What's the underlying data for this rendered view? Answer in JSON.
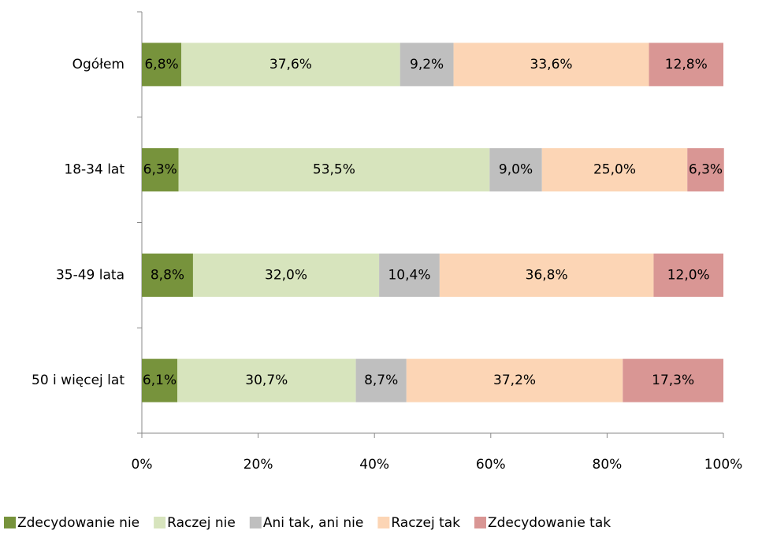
{
  "chart_data": {
    "type": "bar",
    "orientation": "horizontal",
    "stacked": true,
    "categories": [
      "Ogółem",
      "18-34 lat",
      "35-49 lata",
      "50 i więcej lat"
    ],
    "series": [
      {
        "name": "Zdecydowanie nie",
        "color": "#77933c",
        "values": [
          6.8,
          6.3,
          8.8,
          6.1
        ],
        "value_labels": [
          "6,8%",
          "6,3%",
          "8,8%",
          "6,1%"
        ]
      },
      {
        "name": "Raczej nie",
        "color": "#d7e4bd",
        "values": [
          37.6,
          53.5,
          32.0,
          30.7
        ],
        "value_labels": [
          "37,6%",
          "53,5%",
          "32,0%",
          "30,7%"
        ]
      },
      {
        "name": "Ani tak, ani nie",
        "color": "#bfbfbf",
        "values": [
          9.2,
          9.0,
          10.4,
          8.7
        ],
        "value_labels": [
          "9,2%",
          "9,0%",
          "10,4%",
          "8,7%"
        ]
      },
      {
        "name": "Raczej tak",
        "color": "#fcd5b5",
        "values": [
          33.6,
          25.0,
          36.8,
          37.2
        ],
        "value_labels": [
          "33,6%",
          "25,0%",
          "36,8%",
          "37,2%"
        ]
      },
      {
        "name": "Zdecydowanie tak",
        "color": "#d99694",
        "values": [
          12.8,
          6.3,
          12.0,
          17.3
        ],
        "value_labels": [
          "12,8%",
          "6,3%",
          "12,0%",
          "17,3%"
        ]
      }
    ],
    "xlim": [
      0,
      100
    ],
    "xticks": [
      {
        "value": 0,
        "label": "0%"
      },
      {
        "value": 20,
        "label": "20%"
      },
      {
        "value": 40,
        "label": "40%"
      },
      {
        "value": 60,
        "label": "60%"
      },
      {
        "value": 80,
        "label": "80%"
      },
      {
        "value": 100,
        "label": "100%"
      }
    ],
    "legend": "bottom"
  }
}
